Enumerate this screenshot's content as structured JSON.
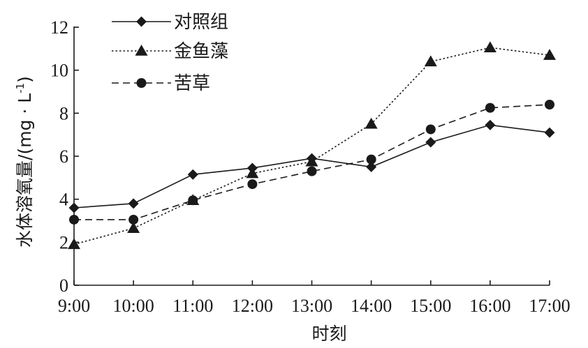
{
  "chart_data": {
    "type": "line",
    "title": "",
    "xlabel": "时刻",
    "ylabel": "水体溶氧量/(mg · L",
    "ylabel_sup": "-1",
    "ylabel_close": ")",
    "categories": [
      "9:00",
      "10:00",
      "11:00",
      "12:00",
      "13:00",
      "14:00",
      "15:00",
      "16:00",
      "17:00"
    ],
    "ylim": [
      0,
      12
    ],
    "yticks": [
      0,
      2,
      4,
      6,
      8,
      10,
      12
    ],
    "grid": false,
    "legend_position": "top-left",
    "series": [
      {
        "name": "对照组",
        "marker": "diamond",
        "line": "solid",
        "values": [
          3.6,
          3.8,
          5.15,
          5.45,
          5.9,
          5.5,
          6.65,
          7.45,
          7.1
        ]
      },
      {
        "name": "金鱼藻",
        "marker": "triangle",
        "line": "dotted",
        "values": [
          1.9,
          2.65,
          3.95,
          5.2,
          5.75,
          7.5,
          10.4,
          11.05,
          10.7
        ]
      },
      {
        "name": "苦草",
        "marker": "circle",
        "line": "dashed",
        "values": [
          3.05,
          3.05,
          3.95,
          4.7,
          5.3,
          5.85,
          7.25,
          8.25,
          8.4
        ]
      }
    ]
  }
}
